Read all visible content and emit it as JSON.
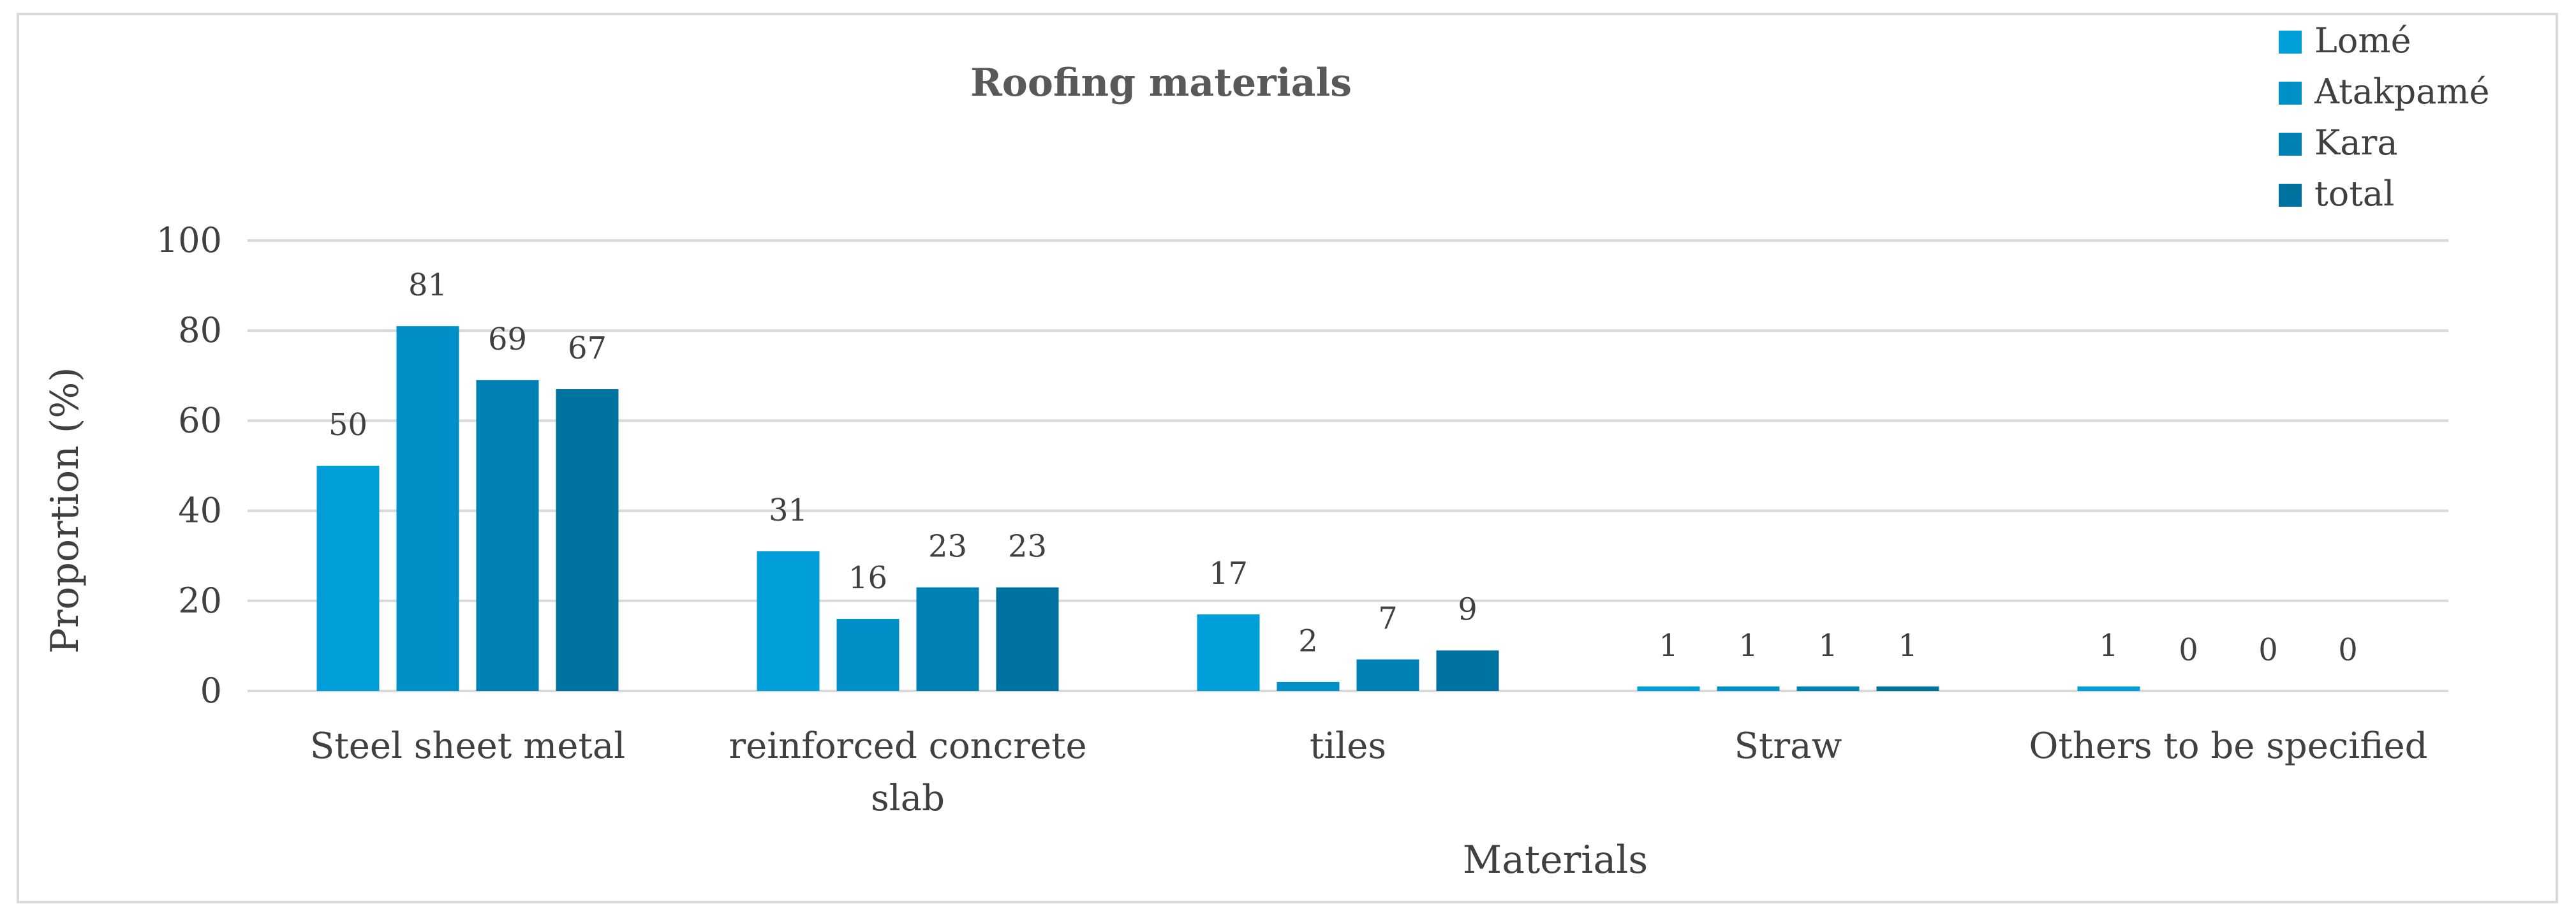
{
  "chart_data": {
    "type": "bar",
    "title": "Roofing materials",
    "xlabel": "Materials",
    "ylabel": "Proportion (%)",
    "ylim": [
      0,
      100
    ],
    "yticks": [
      0,
      20,
      40,
      60,
      80,
      100
    ],
    "grid": true,
    "legend_position": "top-right",
    "categories": [
      [
        "Steel sheet metal"
      ],
      [
        "reinforced concrete",
        "slab"
      ],
      [
        "tiles"
      ],
      [
        "Straw"
      ],
      [
        "Others to be specified"
      ]
    ],
    "series": [
      {
        "name": "Lomé",
        "color": "#009FDA",
        "values": [
          50,
          31,
          17,
          1,
          1
        ]
      },
      {
        "name": "Atakpamé",
        "color": "#0090C8",
        "values": [
          81,
          16,
          2,
          1,
          0
        ]
      },
      {
        "name": "Kara",
        "color": "#0081B3",
        "values": [
          69,
          23,
          7,
          1,
          0
        ]
      },
      {
        "name": "total",
        "color": "#00729F",
        "values": [
          67,
          23,
          9,
          1,
          0
        ]
      }
    ]
  }
}
